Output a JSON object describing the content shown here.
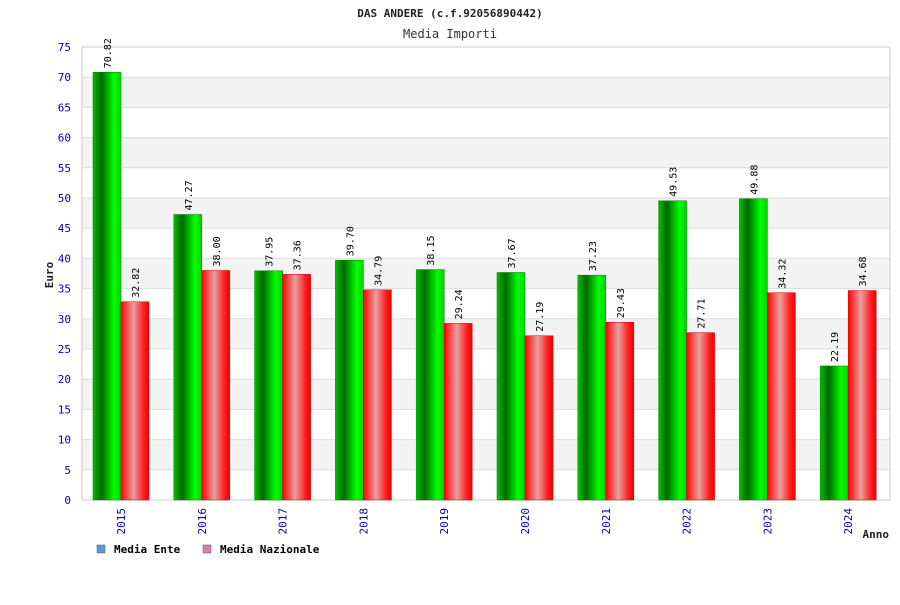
{
  "chart_data": {
    "type": "bar",
    "title": "DAS ANDERE (c.f.92056890442)",
    "subtitle": "Media Importi",
    "xlabel": "Anno",
    "ylabel": "Euro",
    "ylim": [
      0,
      75
    ],
    "yticks": [
      0,
      5,
      10,
      15,
      20,
      25,
      30,
      35,
      40,
      45,
      50,
      55,
      60,
      65,
      70,
      75
    ],
    "categories": [
      "2015",
      "2016",
      "2017",
      "2018",
      "2019",
      "2020",
      "2021",
      "2022",
      "2023",
      "2024"
    ],
    "series": [
      {
        "name": "Media Ente",
        "color": "#00b000",
        "legend_color": "#5b9bd5",
        "values": [
          70.82,
          47.27,
          37.95,
          39.7,
          38.15,
          37.67,
          37.23,
          49.53,
          49.88,
          22.19
        ],
        "labels": [
          "70.82",
          "47.27",
          "37.95",
          "39.70",
          "38.15",
          "37.67",
          "37.23",
          "49.53",
          "49.88",
          "22.19"
        ]
      },
      {
        "name": "Media Nazionale",
        "color": "#ff0000",
        "legend_color": "#e07bb0",
        "values": [
          32.82,
          38.0,
          37.36,
          34.79,
          29.24,
          27.19,
          29.43,
          27.71,
          34.32,
          34.68
        ],
        "labels": [
          "32.82",
          "38.00",
          "37.36",
          "34.79",
          "29.24",
          "27.19",
          "29.43",
          "27.71",
          "34.32",
          "34.68"
        ]
      }
    ],
    "grid": true,
    "legend_position": "bottom-left"
  }
}
